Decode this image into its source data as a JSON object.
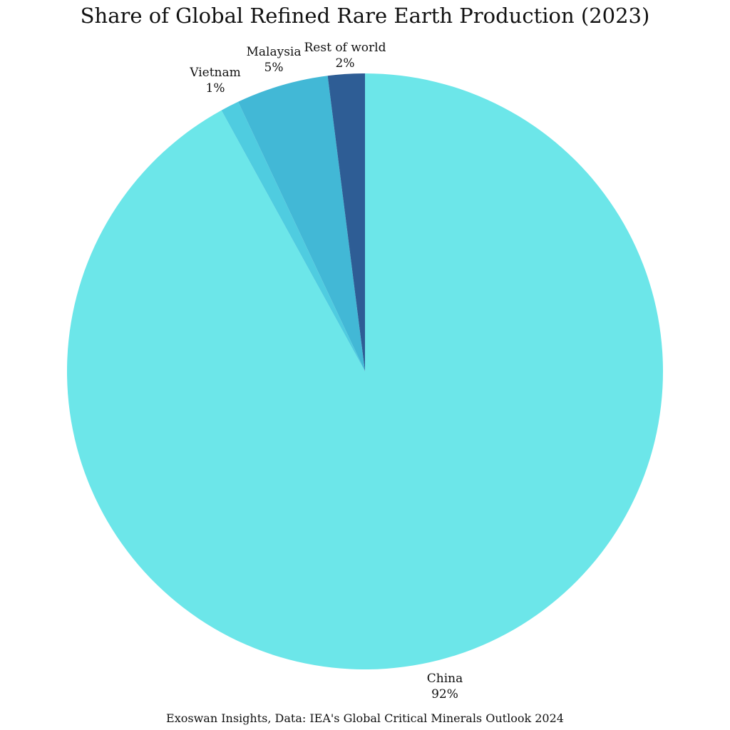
{
  "chart_data": {
    "type": "pie",
    "title": "Share of Global Refined Rare Earth Production (2023)",
    "source": "Exoswan Insights, Data: IEA's Global Critical Minerals Outlook 2024",
    "start_angle": "12 o'clock",
    "direction": "clockwise",
    "slices": [
      {
        "label": "China",
        "value": 92,
        "value_label": "92%",
        "color": "#6ce6e9"
      },
      {
        "label": "Vietnam",
        "value": 1,
        "value_label": "1%",
        "color": "#4fcce0"
      },
      {
        "label": "Malaysia",
        "value": 5,
        "value_label": "5%",
        "color": "#42b8d6"
      },
      {
        "label": "Rest of world",
        "value": 2,
        "value_label": "2%",
        "color": "#2e5d95"
      }
    ]
  }
}
